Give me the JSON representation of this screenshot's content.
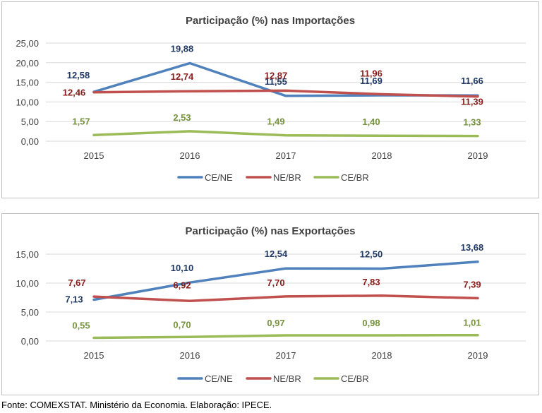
{
  "source_note": "Fonte: COMEXSTAT. Ministério da Economia.  Elaboração: IPECE.",
  "chart_data": [
    {
      "type": "line",
      "title": "Participação (%) nas Importações",
      "categories": [
        "2015",
        "2016",
        "2017",
        "2018",
        "2019"
      ],
      "ylim": [
        0,
        25
      ],
      "yticks": [
        "0,00",
        "5,00",
        "10,00",
        "15,00",
        "20,00",
        "25,00"
      ],
      "ytick_values": [
        0,
        5,
        10,
        15,
        20,
        25
      ],
      "grid": true,
      "legend_position": "bottom",
      "series": [
        {
          "name": "CE/NE",
          "color": "#4F81BD",
          "label_color": "#1F3864",
          "values": [
            12.58,
            19.88,
            11.55,
            11.69,
            11.66
          ],
          "labels": [
            "12,58",
            "19,88",
            "11,55",
            "11,69",
            "11,66"
          ]
        },
        {
          "name": "NE/BR",
          "color": "#C0504D",
          "label_color": "#8B1A1A",
          "values": [
            12.46,
            12.74,
            12.87,
            11.96,
            11.39
          ],
          "labels": [
            "12,46",
            "12,74",
            "12,87",
            "11,96",
            "11,39"
          ]
        },
        {
          "name": "CE/BR",
          "color": "#9BBB59",
          "label_color": "#76923C",
          "values": [
            1.57,
            2.53,
            1.49,
            1.4,
            1.33
          ],
          "labels": [
            "1,57",
            "2,53",
            "1,49",
            "1,40",
            "1,33"
          ]
        }
      ]
    },
    {
      "type": "line",
      "title": "Participação (%) nas Exportações",
      "categories": [
        "2015",
        "2016",
        "2017",
        "2018",
        "2019"
      ],
      "ylim": [
        0,
        15
      ],
      "yticks": [
        "0,00",
        "5,00",
        "10,00",
        "15,00"
      ],
      "ytick_values": [
        0,
        5,
        10,
        15
      ],
      "grid": true,
      "legend_position": "bottom",
      "series": [
        {
          "name": "CE/NE",
          "color": "#4F81BD",
          "label_color": "#1F3864",
          "values": [
            7.13,
            10.1,
            12.54,
            12.5,
            13.68
          ],
          "labels": [
            "7,13",
            "10,10",
            "12,54",
            "12,50",
            "13,68"
          ]
        },
        {
          "name": "NE/BR",
          "color": "#C0504D",
          "label_color": "#8B1A1A",
          "values": [
            7.67,
            6.92,
            7.7,
            7.83,
            7.39
          ],
          "labels": [
            "7,67",
            "6,92",
            "7,70",
            "7,83",
            "7,39"
          ]
        },
        {
          "name": "CE/BR",
          "color": "#9BBB59",
          "label_color": "#76923C",
          "values": [
            0.55,
            0.7,
            0.97,
            0.98,
            1.01
          ],
          "labels": [
            "0,55",
            "0,70",
            "0,97",
            "0,98",
            "1,01"
          ]
        }
      ]
    }
  ]
}
